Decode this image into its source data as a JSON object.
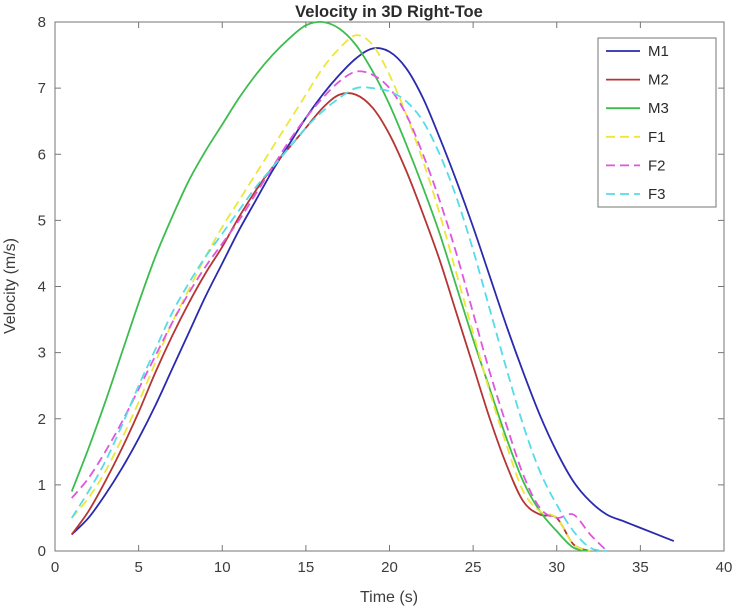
{
  "figure": {
    "background": "#ffffff",
    "axis_color": "#767676",
    "text_color": "#3c3c3c"
  },
  "chart_data": {
    "type": "line",
    "title": "Velocity in 3D Right-Toe",
    "xlabel": "Time (s)",
    "ylabel": "Velocity (m/s)",
    "xlim": [
      0,
      40
    ],
    "ylim": [
      0,
      8
    ],
    "xticks": [
      0,
      5,
      10,
      15,
      20,
      25,
      30,
      35,
      40
    ],
    "yticks": [
      0,
      1,
      2,
      3,
      4,
      5,
      6,
      7,
      8
    ],
    "grid": false,
    "legend_position": "top-right",
    "x": [
      1,
      2,
      3,
      4,
      5,
      6,
      7,
      8,
      9,
      10,
      11,
      12,
      13,
      14,
      15,
      16,
      17,
      18,
      19,
      20,
      21,
      22,
      23,
      24,
      25,
      26,
      27,
      28,
      29,
      30,
      31,
      32,
      33,
      34,
      35,
      36,
      37
    ],
    "series": [
      {
        "name": "M1",
        "color": "#2a2aae",
        "style": "solid",
        "values": [
          0.25,
          0.5,
          0.85,
          1.25,
          1.7,
          2.2,
          2.75,
          3.3,
          3.85,
          4.35,
          4.85,
          5.3,
          5.75,
          6.15,
          6.55,
          6.9,
          7.2,
          7.45,
          7.6,
          7.55,
          7.3,
          6.85,
          6.25,
          5.6,
          4.9,
          4.15,
          3.4,
          2.7,
          2.05,
          1.5,
          1.05,
          0.75,
          0.55,
          0.45,
          0.35,
          0.25,
          0.15
        ]
      },
      {
        "name": "M2",
        "color": "#b73434",
        "style": "solid",
        "values": [
          0.25,
          0.6,
          1.05,
          1.55,
          2.1,
          2.7,
          3.25,
          3.75,
          4.2,
          4.6,
          5.05,
          5.45,
          5.8,
          6.1,
          6.4,
          6.7,
          6.9,
          6.9,
          6.7,
          6.3,
          5.75,
          5.1,
          4.4,
          3.6,
          2.8,
          2.0,
          1.3,
          0.75,
          0.55,
          0.5,
          0.1,
          0.0,
          null,
          null,
          null,
          null,
          null
        ]
      },
      {
        "name": "M3",
        "color": "#3dbd4e",
        "style": "solid",
        "values": [
          0.9,
          1.55,
          2.25,
          3.0,
          3.75,
          4.45,
          5.05,
          5.6,
          6.05,
          6.45,
          6.85,
          7.2,
          7.5,
          7.75,
          7.95,
          8.0,
          7.9,
          7.65,
          7.25,
          6.75,
          6.15,
          5.5,
          4.8,
          4.0,
          3.2,
          2.45,
          1.7,
          1.05,
          0.6,
          0.3,
          0.05,
          0.0,
          null,
          null,
          null,
          null,
          null
        ]
      },
      {
        "name": "F1",
        "color": "#ece73a",
        "style": "dashed",
        "values": [
          0.5,
          0.8,
          1.2,
          1.7,
          2.25,
          2.85,
          3.45,
          3.95,
          4.45,
          4.9,
          5.3,
          5.7,
          6.1,
          6.5,
          6.9,
          7.3,
          7.6,
          7.8,
          7.65,
          7.2,
          6.6,
          5.9,
          5.1,
          4.2,
          3.3,
          2.4,
          1.6,
          0.9,
          0.6,
          0.5,
          0.1,
          0.0,
          null,
          null,
          null,
          null,
          null
        ]
      },
      {
        "name": "F2",
        "color": "#df56df",
        "style": "dashed",
        "values": [
          0.8,
          1.1,
          1.5,
          1.95,
          2.45,
          2.95,
          3.45,
          3.9,
          4.3,
          4.65,
          5.0,
          5.4,
          5.8,
          6.2,
          6.55,
          6.85,
          7.1,
          7.25,
          7.2,
          7.0,
          6.6,
          6.0,
          5.3,
          4.5,
          3.6,
          2.7,
          1.9,
          1.15,
          0.65,
          0.5,
          0.55,
          0.25,
          0.0,
          null,
          null,
          null,
          null
        ]
      },
      {
        "name": "F3",
        "color": "#56dbe8",
        "style": "dashed",
        "values": [
          0.5,
          0.9,
          1.35,
          1.9,
          2.5,
          3.05,
          3.6,
          4.05,
          4.45,
          4.8,
          5.15,
          5.5,
          5.8,
          6.1,
          6.4,
          6.65,
          6.85,
          7.0,
          7.0,
          6.95,
          6.8,
          6.5,
          6.0,
          5.35,
          4.55,
          3.65,
          2.75,
          1.9,
          1.2,
          0.7,
          0.3,
          0.05,
          0.0,
          null,
          null,
          null,
          null
        ]
      }
    ]
  }
}
